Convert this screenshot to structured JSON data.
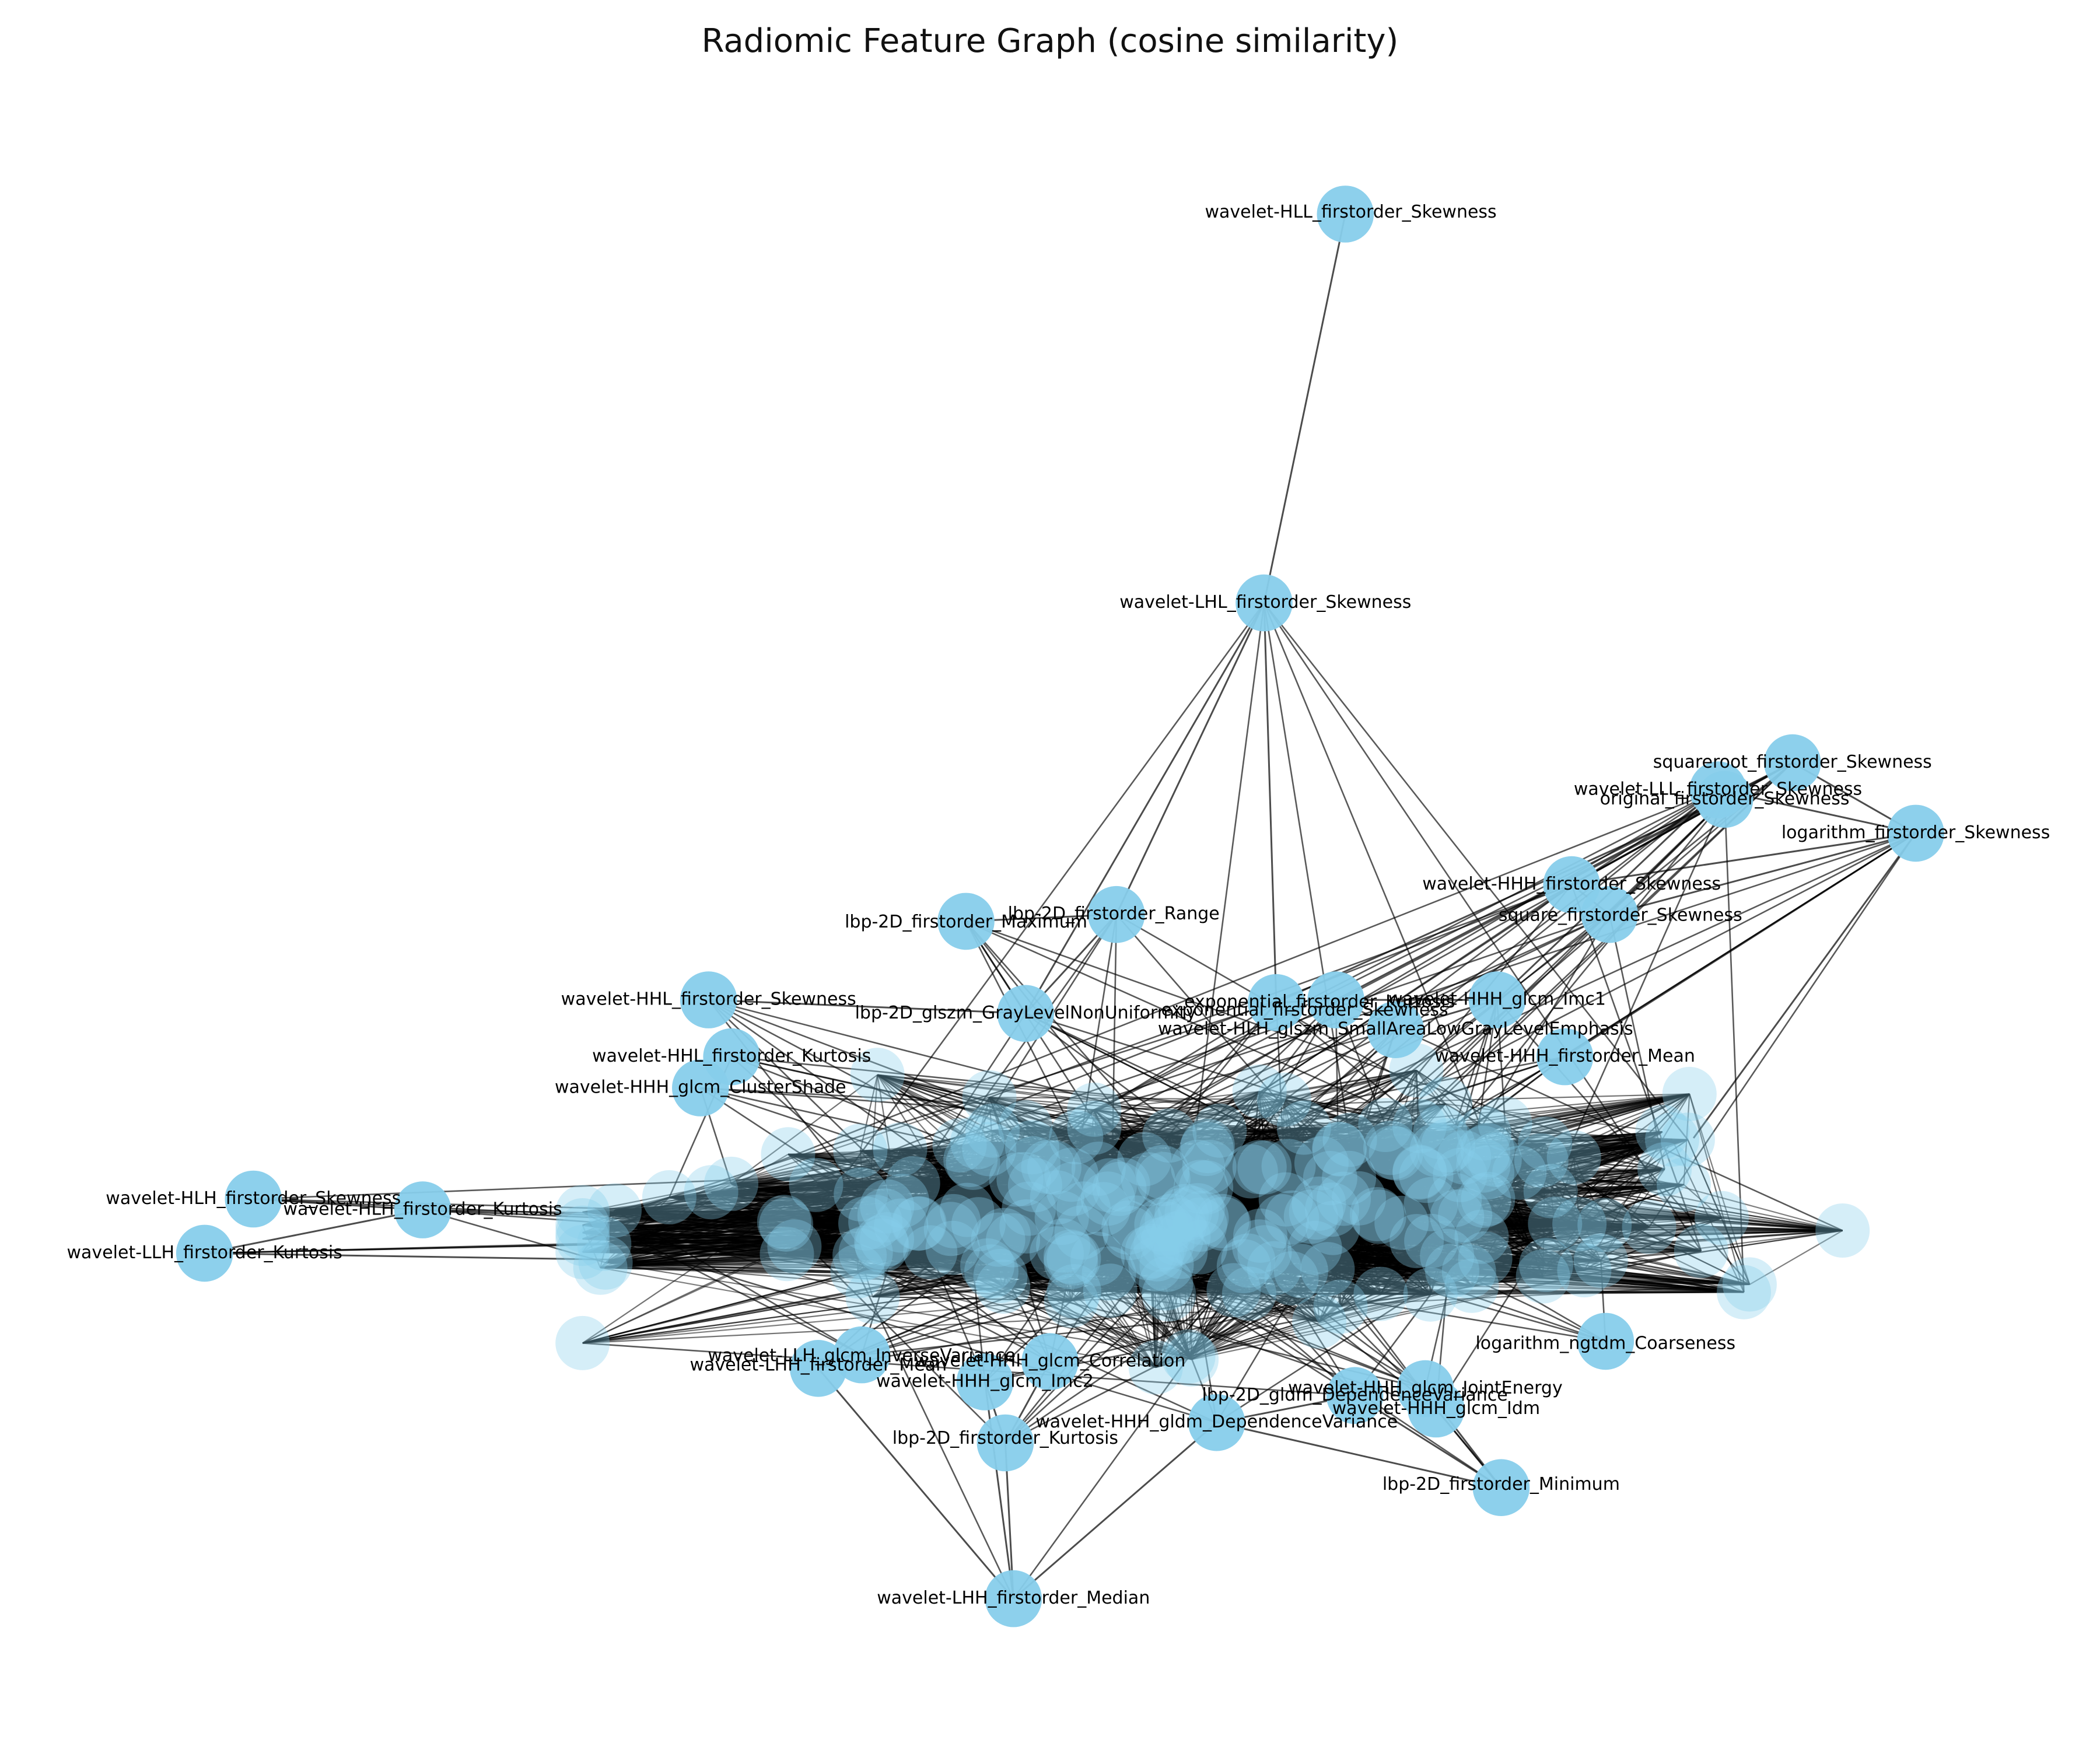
{
  "title": "Radiomic Feature Graph (cosine similarity)",
  "style": {
    "node_color": "#87ceeb",
    "edge_color": "#000000",
    "label_color": "#000000"
  },
  "graph": {
    "node_shape": "circle",
    "layout": "force-directed",
    "dense_core_unlabeled": true,
    "labeled_nodes": [
      {
        "id": "hll_skew",
        "label": "wavelet-HLL_firstorder_Skewness"
      },
      {
        "id": "lhl_skew",
        "label": "wavelet-LHL_firstorder_Skewness"
      },
      {
        "id": "sqrt_skew",
        "label": "squareroot_firstorder_Skewness"
      },
      {
        "id": "lll_skew",
        "label": "wavelet-LLL_firstorder_Skewness"
      },
      {
        "id": "orig_skew",
        "label": "original_firstorder_Skewness"
      },
      {
        "id": "log_skew",
        "label": "logarithm_firstorder_Skewness"
      },
      {
        "id": "hhh_skew",
        "label": "wavelet-HHH_firstorder_Skewness"
      },
      {
        "id": "sq_skew",
        "label": "square_firstorder_Skewness"
      },
      {
        "id": "lbp_max",
        "label": "lbp-2D_firstorder_Maximum"
      },
      {
        "id": "lbp_range",
        "label": "lbp-2D_firstorder_Range"
      },
      {
        "id": "hhl_skew",
        "label": "wavelet-HHL_firstorder_Skewness"
      },
      {
        "id": "lbp_glnu",
        "label": "lbp-2D_glszm_GrayLevelNonUniformity"
      },
      {
        "id": "exp_kurt",
        "label": "exponential_firstorder_Kurtosis"
      },
      {
        "id": "exp_skew",
        "label": "exponential_firstorder_Skewness"
      },
      {
        "id": "hhh_imc1",
        "label": "wavelet-HHH_glcm_Imc1"
      },
      {
        "id": "hlh_salgle",
        "label": "wavelet-HLH_glszm_SmallAreaLowGrayLevelEmphasis"
      },
      {
        "id": "hhh_mean",
        "label": "wavelet-HHH_firstorder_Mean"
      },
      {
        "id": "hhl_kurt",
        "label": "wavelet-HHL_firstorder_Kurtosis"
      },
      {
        "id": "hhh_cshade",
        "label": "wavelet-HHH_glcm_ClusterShade"
      },
      {
        "id": "hlh_f_skew",
        "label": "wavelet-HLH_firstorder_Skewness"
      },
      {
        "id": "hlh_kurt",
        "label": "wavelet-HLH_firstorder_Kurtosis"
      },
      {
        "id": "llh_kurt",
        "label": "wavelet-LLH_firstorder_Kurtosis"
      },
      {
        "id": "lhh_mean",
        "label": "wavelet-LHH_firstorder_Mean"
      },
      {
        "id": "llh_iv",
        "label": "wavelet-LLH_glcm_InverseVariance"
      },
      {
        "id": "hhh_imc2",
        "label": "wavelet-HHH_glcm_Imc2"
      },
      {
        "id": "hhh_corr",
        "label": "wavelet-HHH_glcm_Correlation"
      },
      {
        "id": "lbp_kurt",
        "label": "lbp-2D_firstorder_Kurtosis"
      },
      {
        "id": "hhh_gldm_dv",
        "label": "wavelet-HHH_gldm_DependenceVariance"
      },
      {
        "id": "lbp_gldm_dv",
        "label": "lbp-2D_gldm_DependenceVariance"
      },
      {
        "id": "hhh_je",
        "label": "wavelet-HHH_glcm_JointEnergy"
      },
      {
        "id": "hhh_idm",
        "label": "wavelet-HHH_glcm_Idm"
      },
      {
        "id": "log_ngtdm",
        "label": "logarithm_ngtdm_Coarseness"
      },
      {
        "id": "lbp_min",
        "label": "lbp-2D_firstorder_Minimum"
      },
      {
        "id": "lhh_median",
        "label": "wavelet-LHH_firstorder_Median"
      }
    ]
  }
}
